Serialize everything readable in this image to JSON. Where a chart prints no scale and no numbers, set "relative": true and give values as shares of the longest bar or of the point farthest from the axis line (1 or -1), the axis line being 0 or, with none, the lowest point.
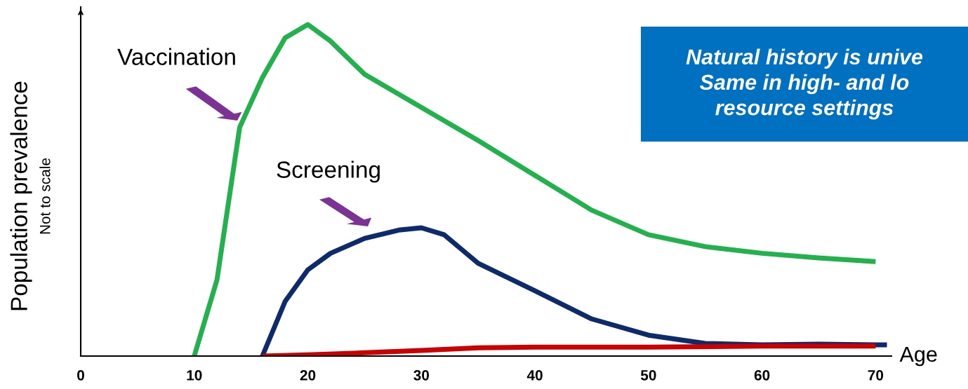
{
  "chart_data": {
    "type": "line",
    "relative": true,
    "xlabel": "Age",
    "ylabel": "Population prevalence",
    "xlim": [
      0,
      71.4
    ],
    "xticks": [
      0,
      10,
      20,
      30,
      40,
      50,
      60,
      70
    ],
    "grid": false,
    "legend": false,
    "marker": "none",
    "line_style": "solid",
    "annotations": [
      "Not to scale",
      "Vaccination",
      "Screening",
      "Natural history is unive\nSame in high- and lo\nresource settings"
    ],
    "series": [
      {
        "color": "#22b14c",
        "x": [
          10,
          12,
          14,
          16,
          18,
          20,
          22,
          25,
          30,
          35,
          40,
          45,
          50,
          55,
          60,
          65,
          70
        ],
        "values": [
          0,
          0.23,
          0.69,
          0.84,
          0.96,
          1.0,
          0.95,
          0.85,
          0.75,
          0.65,
          0.545,
          0.44,
          0.366,
          0.33,
          0.31,
          0.296,
          0.285
        ]
      },
      {
        "color": "#0d2a6b",
        "x": [
          16,
          18,
          20,
          22,
          25,
          28,
          30,
          32,
          35,
          40,
          45,
          50,
          55,
          60,
          65,
          70,
          71
        ],
        "values": [
          0,
          0.165,
          0.26,
          0.31,
          0.355,
          0.38,
          0.387,
          0.366,
          0.28,
          0.197,
          0.112,
          0.063,
          0.038,
          0.034,
          0.036,
          0.034,
          0.034
        ]
      },
      {
        "color": "#cc0000",
        "x": [
          16,
          20,
          25,
          30,
          35,
          40,
          50,
          60,
          70
        ],
        "values": [
          0,
          0.004,
          0.01,
          0.017,
          0.025,
          0.027,
          0.027,
          0.03,
          0.03
        ]
      }
    ]
  }
}
